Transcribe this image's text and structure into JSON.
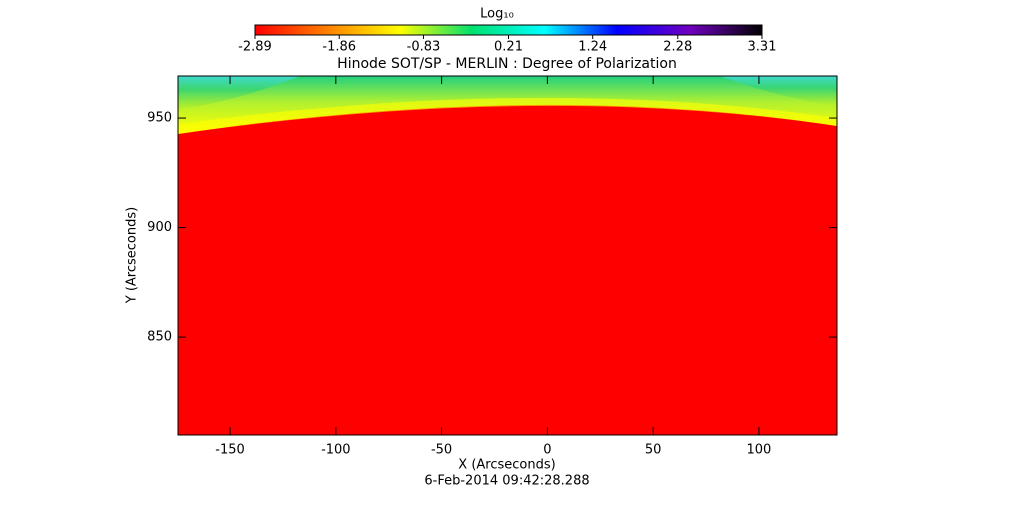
{
  "chart_data": {
    "type": "image",
    "title": "Hinode SOT/SP - MERLIN : Degree of Polarization",
    "x_label": "X (Arcseconds)",
    "y_label": "Y (Arcseconds)",
    "date": "6-Feb-2014 09:42:28.288",
    "xlim": [
      -174.6,
      136.9
    ],
    "xticks": [
      -150,
      -100,
      -50,
      0,
      50,
      100
    ],
    "ylim": [
      805.3,
      969.2
    ],
    "yticks": [
      850,
      900,
      950
    ],
    "colorbar": {
      "label": "Log₁₀",
      "lim": [
        -2.89,
        3.31
      ],
      "ticks": [
        -2.89,
        -1.86,
        -0.83,
        0.21,
        1.24,
        2.28,
        3.31
      ],
      "colormap": [
        "#ff0000",
        "#ff8000",
        "#ffff00",
        "#00e070",
        "#00ffff",
        "#0000ff",
        "#7000c0",
        "#000000"
      ]
    }
  }
}
